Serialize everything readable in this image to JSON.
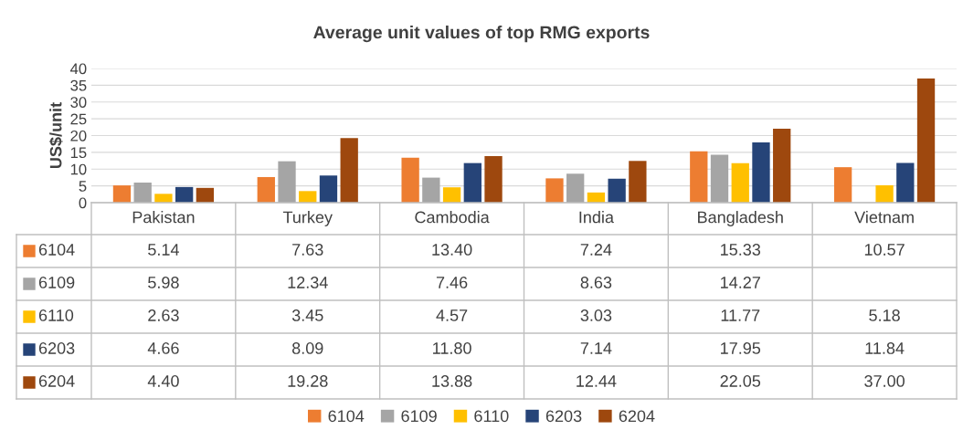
{
  "chart_data": {
    "type": "bar",
    "title": "Average unit values of top RMG exports",
    "ylabel": "US$/unit",
    "categories": [
      "Pakistan",
      "Turkey",
      "Cambodia",
      "India",
      "Bangladesh",
      "Vietnam"
    ],
    "series": [
      {
        "name": "6104",
        "color": "#ed7d31",
        "values": [
          5.14,
          7.63,
          13.4,
          7.24,
          15.33,
          10.57
        ],
        "value_labels": [
          "5.14",
          "7.63",
          "13.40",
          "7.24",
          "15.33",
          "10.57"
        ]
      },
      {
        "name": "6109",
        "color": "#a5a5a5",
        "values": [
          5.98,
          12.34,
          7.46,
          8.63,
          14.27,
          null
        ],
        "value_labels": [
          "5.98",
          "12.34",
          "7.46",
          "8.63",
          "14.27",
          null
        ]
      },
      {
        "name": "6110",
        "color": "#ffc000",
        "values": [
          2.63,
          3.45,
          4.57,
          3.03,
          11.77,
          5.18
        ],
        "value_labels": [
          "2.63",
          "3.45",
          "4.57",
          "3.03",
          "11.77",
          "5.18"
        ]
      },
      {
        "name": "6203",
        "color": "#264478",
        "values": [
          4.66,
          8.09,
          11.8,
          7.14,
          17.95,
          11.84
        ],
        "value_labels": [
          "4.66",
          "8.09",
          "11.80",
          "7.14",
          "17.95",
          "11.84"
        ]
      },
      {
        "name": "6204",
        "color": "#9e480e",
        "values": [
          4.4,
          19.28,
          13.88,
          12.44,
          22.05,
          37.0
        ],
        "value_labels": [
          "4.40",
          "19.28",
          "13.88",
          "12.44",
          "22.05",
          "37.00"
        ]
      }
    ],
    "ylim": [
      0,
      40
    ],
    "yticks": [
      0,
      5,
      10,
      15,
      20,
      25,
      30,
      35,
      40
    ],
    "grid": "y",
    "legend": "bottom"
  }
}
